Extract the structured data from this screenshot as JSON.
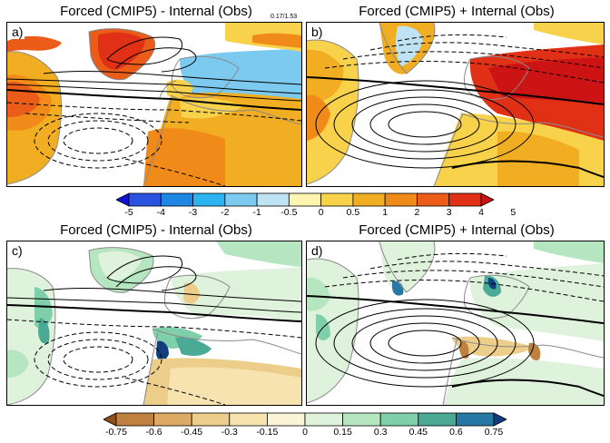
{
  "panels": [
    {
      "label": "a)",
      "title": "Forced (CMIP5) - Internal (Obs)",
      "note": "0.17/1.53"
    },
    {
      "label": "b)",
      "title": "Forced (CMIP5) + Internal (Obs)"
    },
    {
      "label": "c)",
      "title": "Forced (CMIP5) - Internal (Obs)"
    },
    {
      "label": "d)",
      "title": "Forced (CMIP5) + Internal (Obs)"
    }
  ],
  "colorbar_temp": {
    "ticks": [
      "-5",
      "-4",
      "-3",
      "-2",
      "-1",
      "-0.5",
      "0",
      "0.5",
      "1",
      "2",
      "3",
      "4",
      "5"
    ],
    "colors": [
      "#1010d8",
      "#2a52e0",
      "#1f86e6",
      "#2bb4f0",
      "#7ccaf0",
      "#bfe3f2",
      "#fff5b0",
      "#f7d24a",
      "#f2ae22",
      "#f08a18",
      "#ea5c17",
      "#e03016",
      "#cc1414"
    ]
  },
  "colorbar_precip": {
    "ticks": [
      "-0.75",
      "-0.6",
      "-0.45",
      "-0.3",
      "-0.15",
      "0",
      "0.15",
      "0.3",
      "0.45",
      "0.6",
      "0.75"
    ],
    "colors": [
      "#8f4e1c",
      "#bf8040",
      "#dcaa62",
      "#edcd8a",
      "#f6e3b0",
      "#fbf3d6",
      "#dff3dc",
      "#b6e6c0",
      "#7fcfaa",
      "#4aaa96",
      "#2778a4",
      "#113e7c"
    ]
  }
}
